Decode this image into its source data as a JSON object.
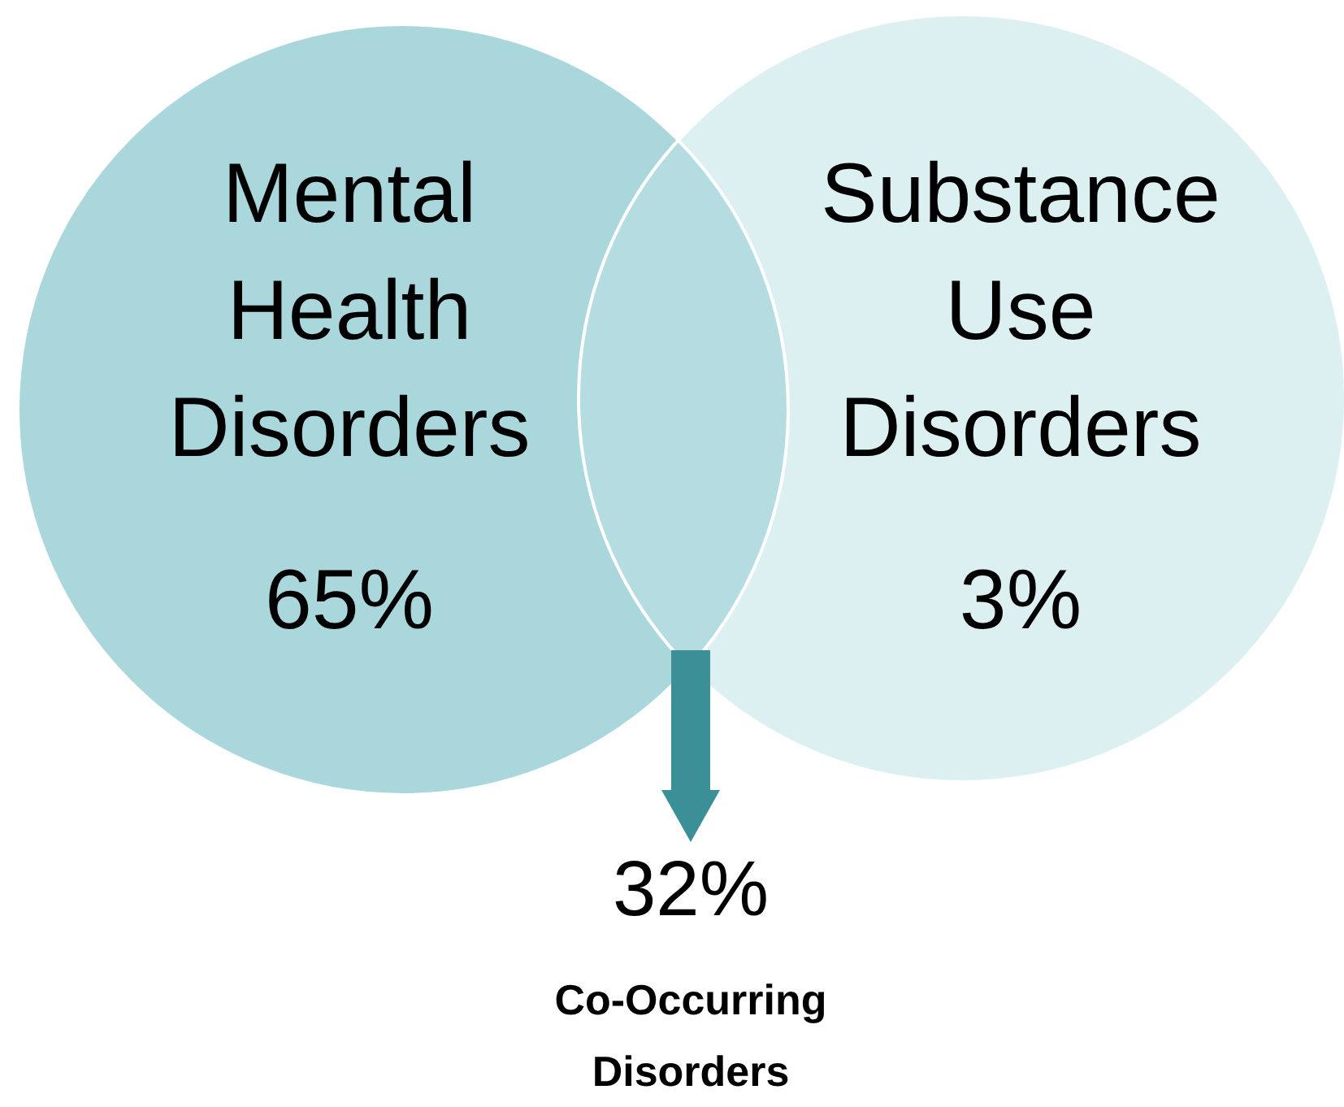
{
  "chart_data": {
    "type": "other",
    "categories": [
      "Mental Health Disorders",
      "Substance Use Disorders",
      "Co-Occurring Disorders"
    ],
    "values": [
      65,
      3,
      32
    ],
    "value_labels": [
      "65%",
      "3%",
      "32%"
    ],
    "colors": [
      "#a9d7dc",
      "#dcf0f1",
      "#b5dde1"
    ]
  }
}
